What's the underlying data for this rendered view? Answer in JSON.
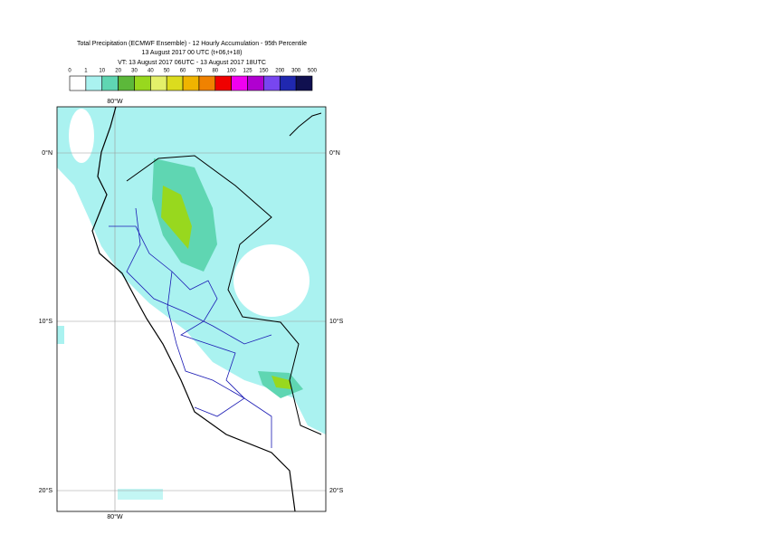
{
  "header": {
    "title": "Total Precipitation (ECMWF Ensemble) - 12 Hourly Accumulation - 95th Percentile",
    "run": "13 August 2017 00 UTC (t+06,t+18)",
    "valid": "VT: 13 August 2017 06UTC - 13 August 2017 18UTC"
  },
  "legend": {
    "levels": [
      0,
      1,
      10,
      20,
      30,
      40,
      50,
      60,
      70,
      80,
      100,
      125,
      150,
      200,
      300,
      500
    ],
    "colors": [
      "#ffffff",
      "#aaf2f0",
      "#5fd6b2",
      "#5cb83a",
      "#98d81e",
      "#e4f06a",
      "#dcdc1e",
      "#f0b400",
      "#f08200",
      "#f00000",
      "#f000f0",
      "#b000d0",
      "#7846f0",
      "#2028b0",
      "#101050"
    ]
  },
  "map": {
    "lon_labels": [
      "80°W"
    ],
    "lat_labels": [
      "0°N",
      "10°S",
      "20°S"
    ]
  }
}
